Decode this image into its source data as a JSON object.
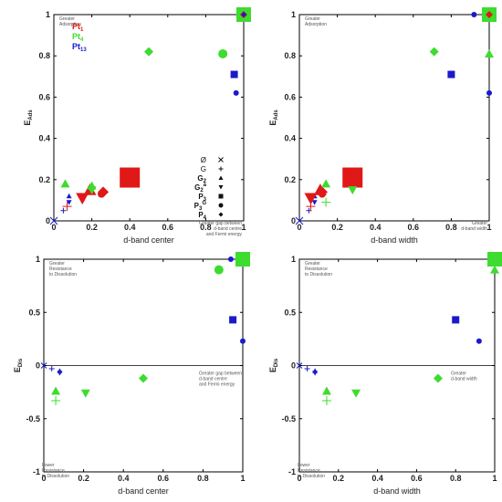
{
  "colors": {
    "Pt1": "#e01818",
    "Pt4": "#3ddc2f",
    "Pt13": "#1a1acc"
  },
  "legend": [
    {
      "name": "Pt",
      "sub": "1",
      "color": "#e01818"
    },
    {
      "name": "Pt",
      "sub": "4",
      "color": "#3ddc2f"
    },
    {
      "name": "Pt",
      "sub": "13",
      "color": "#1a1acc"
    }
  ],
  "marker_key": [
    {
      "label": "Ø",
      "sub": "",
      "sup": "",
      "marker": "x",
      "bold": false
    },
    {
      "label": "G",
      "sub": "",
      "sup": "",
      "marker": "plus",
      "bold": false
    },
    {
      "label": "G",
      "sub": "2",
      "sup": "",
      "marker": "triangle-up",
      "bold": true
    },
    {
      "label": "G",
      "sub": "2",
      "sup": "a",
      "marker": "triangle-down",
      "bold": true
    },
    {
      "label": "P",
      "sub": "3",
      "sup": "",
      "marker": "square",
      "bold": true
    },
    {
      "label": "P",
      "sub": "3",
      "sup": "G",
      "marker": "circle",
      "bold": true
    },
    {
      "label": "P",
      "sub": "4",
      "sup": "",
      "marker": "diamond",
      "bold": true
    }
  ],
  "chart_data": [
    {
      "id": "top-left",
      "type": "scatter",
      "xlabel": "d-band center",
      "ylabel": "E_Ads",
      "xlim": [
        0,
        1
      ],
      "ylim": [
        0,
        1
      ],
      "xticks": [
        0,
        0.2,
        0.4,
        0.6,
        0.8,
        1
      ],
      "yticks": [
        0,
        0.2,
        0.4,
        0.6,
        0.8,
        1
      ],
      "tick_labels_x": [
        "0",
        "0.2",
        "0.4",
        "0.6",
        "0.8",
        "1"
      ],
      "tick_labels_y": [
        "0",
        "0.2",
        "0.4",
        "0.6",
        "0.8",
        "1"
      ],
      "annotations": [
        {
          "text": [
            "Greater",
            "Adsorption"
          ],
          "pos": "top-left"
        },
        {
          "text": [
            "Greater gap between",
            "d-band centre",
            "and Fermi energy"
          ],
          "pos": "bottom-right"
        }
      ],
      "points": [
        {
          "series": "Pt13",
          "marker": "x",
          "x": 0.0,
          "y": 0.0,
          "size": 4
        },
        {
          "series": "Pt13",
          "marker": "plus",
          "x": 0.05,
          "y": 0.05,
          "size": 3
        },
        {
          "series": "Pt1",
          "marker": "plus",
          "x": 0.07,
          "y": 0.07,
          "size": 5
        },
        {
          "series": "Pt13",
          "marker": "triangle-up",
          "x": 0.08,
          "y": 0.12,
          "size": 3
        },
        {
          "series": "Pt13",
          "marker": "triangle-down",
          "x": 0.08,
          "y": 0.09,
          "size": 3
        },
        {
          "series": "Pt4",
          "marker": "triangle-up",
          "x": 0.06,
          "y": 0.18,
          "size": 5
        },
        {
          "series": "Pt1",
          "marker": "triangle-down",
          "x": 0.15,
          "y": 0.11,
          "size": 7
        },
        {
          "series": "Pt1",
          "marker": "triangle-up",
          "x": 0.19,
          "y": 0.15,
          "size": 7
        },
        {
          "series": "Pt4",
          "marker": "triangle-up",
          "x": 0.2,
          "y": 0.17,
          "size": 5
        },
        {
          "series": "Pt4",
          "marker": "triangle-down",
          "x": 0.2,
          "y": 0.15,
          "size": 5
        },
        {
          "series": "Pt1",
          "marker": "diamond",
          "x": 0.26,
          "y": 0.14,
          "size": 6
        },
        {
          "series": "Pt1",
          "marker": "circle",
          "x": 0.25,
          "y": 0.13,
          "size": 4
        },
        {
          "series": "Pt1",
          "marker": "square",
          "x": 0.4,
          "y": 0.21,
          "size": 11
        },
        {
          "series": "Pt4",
          "marker": "diamond",
          "x": 0.5,
          "y": 0.82,
          "size": 5
        },
        {
          "series": "Pt4",
          "marker": "circle",
          "x": 0.89,
          "y": 0.81,
          "size": 5
        },
        {
          "series": "Pt13",
          "marker": "square",
          "x": 0.95,
          "y": 0.71,
          "size": 4
        },
        {
          "series": "Pt13",
          "marker": "circle",
          "x": 0.96,
          "y": 0.62,
          "size": 3
        },
        {
          "series": "Pt4",
          "marker": "square",
          "x": 1.0,
          "y": 1.0,
          "size": 8
        },
        {
          "series": "Pt1",
          "marker": "diamond",
          "x": 1.0,
          "y": 1.0,
          "size": 4
        },
        {
          "series": "Pt13",
          "marker": "diamond",
          "x": 1.0,
          "y": 1.0,
          "size": 3
        }
      ]
    },
    {
      "id": "top-right",
      "type": "scatter",
      "xlabel": "d-band width",
      "ylabel": "E_Ads",
      "xlim": [
        0,
        1
      ],
      "ylim": [
        0,
        1
      ],
      "xticks": [
        0,
        0.2,
        0.4,
        0.6,
        0.8,
        1
      ],
      "yticks": [
        0,
        0.2,
        0.4,
        0.6,
        0.8,
        1
      ],
      "tick_labels_x": [
        "0",
        "0.2",
        "0.4",
        "0.6",
        "0.8",
        "1"
      ],
      "tick_labels_y": [
        "0",
        "0.2",
        "0.4",
        "0.6",
        "0.8",
        "1"
      ],
      "annotations": [
        {
          "text": [
            "Greater",
            "Adsorption"
          ],
          "pos": "top-left"
        },
        {
          "text": [
            "Greater",
            "d-band width"
          ],
          "pos": "bottom-right"
        }
      ],
      "points": [
        {
          "series": "Pt13",
          "marker": "x",
          "x": 0.0,
          "y": 0.0,
          "size": 4
        },
        {
          "series": "Pt13",
          "marker": "plus",
          "x": 0.05,
          "y": 0.05,
          "size": 3
        },
        {
          "series": "Pt1",
          "marker": "plus",
          "x": 0.06,
          "y": 0.07,
          "size": 5
        },
        {
          "series": "Pt13",
          "marker": "triangle-up",
          "x": 0.08,
          "y": 0.12,
          "size": 3
        },
        {
          "series": "Pt13",
          "marker": "triangle-down",
          "x": 0.08,
          "y": 0.09,
          "size": 3
        },
        {
          "series": "Pt1",
          "marker": "triangle-down",
          "x": 0.06,
          "y": 0.11,
          "size": 7
        },
        {
          "series": "Pt1",
          "marker": "triangle-up",
          "x": 0.11,
          "y": 0.15,
          "size": 7
        },
        {
          "series": "Pt1",
          "marker": "diamond",
          "x": 0.12,
          "y": 0.14,
          "size": 6
        },
        {
          "series": "Pt1",
          "marker": "circle",
          "x": 0.12,
          "y": 0.13,
          "size": 4
        },
        {
          "series": "Pt4",
          "marker": "triangle-up",
          "x": 0.14,
          "y": 0.18,
          "size": 5
        },
        {
          "series": "Pt4",
          "marker": "plus",
          "x": 0.14,
          "y": 0.09,
          "size": 5
        },
        {
          "series": "Pt1",
          "marker": "square",
          "x": 0.28,
          "y": 0.21,
          "size": 11
        },
        {
          "series": "Pt4",
          "marker": "triangle-down",
          "x": 0.28,
          "y": 0.15,
          "size": 5
        },
        {
          "series": "Pt4",
          "marker": "diamond",
          "x": 0.71,
          "y": 0.82,
          "size": 5
        },
        {
          "series": "Pt13",
          "marker": "square",
          "x": 0.8,
          "y": 0.71,
          "size": 4
        },
        {
          "series": "Pt13",
          "marker": "circle",
          "x": 0.92,
          "y": 1.0,
          "size": 3
        },
        {
          "series": "Pt4",
          "marker": "triangle-up",
          "x": 1.0,
          "y": 0.81,
          "size": 5
        },
        {
          "series": "Pt13",
          "marker": "circle",
          "x": 1.0,
          "y": 0.62,
          "size": 3
        },
        {
          "series": "Pt4",
          "marker": "square",
          "x": 1.0,
          "y": 1.0,
          "size": 8
        },
        {
          "series": "Pt1",
          "marker": "diamond",
          "x": 1.0,
          "y": 1.0,
          "size": 4
        }
      ]
    },
    {
      "id": "bottom-left",
      "type": "scatter",
      "xlabel": "d-band center",
      "ylabel": "E_Dis",
      "xlim": [
        0,
        1
      ],
      "ylim": [
        -1,
        1
      ],
      "xticks": [
        0,
        0.2,
        0.4,
        0.6,
        0.8,
        1
      ],
      "yticks": [
        -1,
        -0.5,
        0,
        0.5,
        1
      ],
      "tick_labels_x": [
        "0",
        "0.2",
        "0.4",
        "0.6",
        "0.8",
        "1"
      ],
      "tick_labels_y": [
        "-1",
        "-0.5",
        "0",
        "0.5",
        "1"
      ],
      "annotations": [
        {
          "text": [
            "Greater",
            "Resistance",
            "to Dissolution"
          ],
          "pos": "top-left"
        },
        {
          "text": [
            "Greater gap between",
            "d-band centre",
            "and Fermi energy"
          ],
          "pos": "middle-right"
        },
        {
          "text": [
            "Lower",
            "Resistance",
            "to Dissolution"
          ],
          "pos": "bottom-left"
        }
      ],
      "points": [
        {
          "series": "Pt13",
          "marker": "x",
          "x": 0.0,
          "y": 0.0,
          "size": 3
        },
        {
          "series": "Pt13",
          "marker": "plus",
          "x": 0.04,
          "y": -0.03,
          "size": 3
        },
        {
          "series": "Pt13",
          "marker": "triangle-up",
          "x": 0.08,
          "y": -0.05,
          "size": 3
        },
        {
          "series": "Pt13",
          "marker": "triangle-down",
          "x": 0.08,
          "y": -0.07,
          "size": 3
        },
        {
          "series": "Pt4",
          "marker": "triangle-up",
          "x": 0.06,
          "y": -0.24,
          "size": 5
        },
        {
          "series": "Pt4",
          "marker": "plus",
          "x": 0.06,
          "y": -0.33,
          "size": 5
        },
        {
          "series": "Pt4",
          "marker": "triangle-down",
          "x": 0.21,
          "y": -0.26,
          "size": 5
        },
        {
          "series": "Pt4",
          "marker": "diamond",
          "x": 0.5,
          "y": -0.12,
          "size": 5
        },
        {
          "series": "Pt4",
          "marker": "circle",
          "x": 0.88,
          "y": 0.9,
          "size": 5
        },
        {
          "series": "Pt13",
          "marker": "circle",
          "x": 0.94,
          "y": 1.0,
          "size": 3
        },
        {
          "series": "Pt13",
          "marker": "square",
          "x": 0.95,
          "y": 0.43,
          "size": 4
        },
        {
          "series": "Pt13",
          "marker": "circle",
          "x": 1.0,
          "y": 0.23,
          "size": 3
        },
        {
          "series": "Pt4",
          "marker": "square",
          "x": 1.0,
          "y": 1.0,
          "size": 8
        }
      ]
    },
    {
      "id": "bottom-right",
      "type": "scatter",
      "xlabel": "d-band width",
      "ylabel": "E_Dis",
      "xlim": [
        0,
        1
      ],
      "ylim": [
        -1,
        1
      ],
      "xticks": [
        0,
        0.2,
        0.4,
        0.6,
        0.8,
        1
      ],
      "yticks": [
        -1,
        -0.5,
        0,
        0.5,
        1
      ],
      "tick_labels_x": [
        "0",
        "0.2",
        "0.4",
        "0.6",
        "0.8",
        "1"
      ],
      "tick_labels_y": [
        "-1",
        "-0.5",
        "0",
        "0.5",
        "1"
      ],
      "annotations": [
        {
          "text": [
            "Greater",
            "Resistance",
            "to Dissolution"
          ],
          "pos": "top-left"
        },
        {
          "text": [
            "Greater",
            "d-band width"
          ],
          "pos": "middle-right"
        },
        {
          "text": [
            "Lower",
            "Resistance",
            "to Dissolution"
          ],
          "pos": "bottom-left"
        }
      ],
      "points": [
        {
          "series": "Pt13",
          "marker": "x",
          "x": 0.0,
          "y": 0.0,
          "size": 3
        },
        {
          "series": "Pt13",
          "marker": "plus",
          "x": 0.04,
          "y": -0.03,
          "size": 3
        },
        {
          "series": "Pt13",
          "marker": "triangle-up",
          "x": 0.08,
          "y": -0.05,
          "size": 3
        },
        {
          "series": "Pt13",
          "marker": "triangle-down",
          "x": 0.08,
          "y": -0.07,
          "size": 3
        },
        {
          "series": "Pt4",
          "marker": "triangle-up",
          "x": 0.14,
          "y": -0.24,
          "size": 5
        },
        {
          "series": "Pt4",
          "marker": "plus",
          "x": 0.14,
          "y": -0.33,
          "size": 5
        },
        {
          "series": "Pt4",
          "marker": "triangle-down",
          "x": 0.29,
          "y": -0.26,
          "size": 5
        },
        {
          "series": "Pt4",
          "marker": "diamond",
          "x": 0.71,
          "y": -0.12,
          "size": 5
        },
        {
          "series": "Pt13",
          "marker": "square",
          "x": 0.8,
          "y": 0.43,
          "size": 4
        },
        {
          "series": "Pt13",
          "marker": "circle",
          "x": 0.92,
          "y": 0.23,
          "size": 3
        },
        {
          "series": "Pt4",
          "marker": "triangle-up",
          "x": 1.0,
          "y": 0.9,
          "size": 5
        },
        {
          "series": "Pt13",
          "marker": "circle",
          "x": 1.0,
          "y": 1.0,
          "size": 3
        },
        {
          "series": "Pt4",
          "marker": "square",
          "x": 1.0,
          "y": 1.0,
          "size": 8
        }
      ]
    }
  ]
}
